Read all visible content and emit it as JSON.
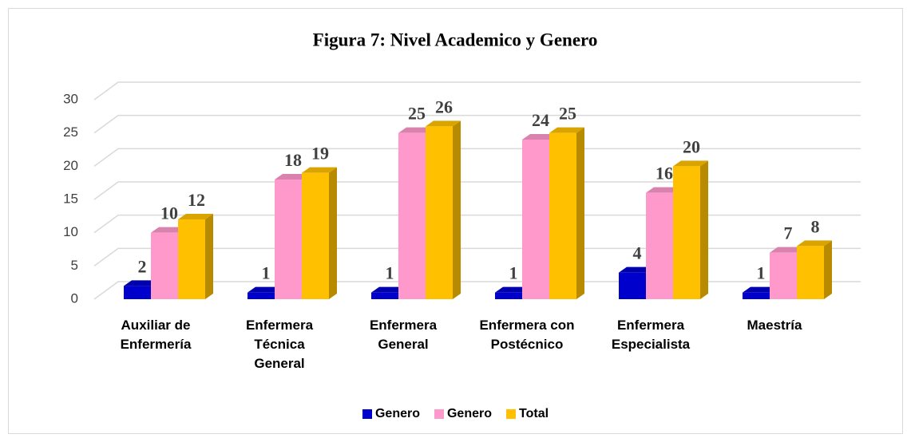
{
  "chart_data": {
    "type": "bar3d",
    "title": "Figura 7: Nivel Academico y Genero",
    "categories": [
      "Auxiliar de Enfermería",
      "Enfermera Técnica General",
      "Enfermera General",
      "Enfermera con Postécnico",
      "Enfermera Especialista",
      "Maestría"
    ],
    "series": [
      {
        "name": "Genero",
        "color": "#0000cc",
        "values": [
          2,
          1,
          1,
          1,
          4,
          1
        ]
      },
      {
        "name": "Genero",
        "color": "#ff99cc",
        "values": [
          10,
          18,
          25,
          24,
          16,
          7
        ]
      },
      {
        "name": "Total",
        "color": "#ffc000",
        "values": [
          12,
          19,
          26,
          25,
          20,
          8
        ]
      }
    ],
    "ylim": [
      0,
      30
    ],
    "yticks": [
      0,
      5,
      10,
      15,
      20,
      25,
      30
    ],
    "grid": true,
    "legend": "bottom"
  }
}
